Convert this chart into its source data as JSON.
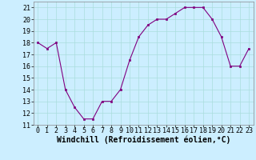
{
  "x": [
    0,
    1,
    2,
    3,
    4,
    5,
    6,
    7,
    8,
    9,
    10,
    11,
    12,
    13,
    14,
    15,
    16,
    17,
    18,
    19,
    20,
    21,
    22,
    23
  ],
  "y": [
    18,
    17.5,
    18,
    14,
    12.5,
    11.5,
    11.5,
    13,
    13,
    14,
    16.5,
    18.5,
    19.5,
    20,
    20,
    20.5,
    21,
    21,
    21,
    20,
    18.5,
    16,
    16,
    17.5
  ],
  "line_color": "#800080",
  "marker_color": "#800080",
  "bg_color": "#cceeff",
  "grid_color": "#aadddd",
  "xlabel": "Windchill (Refroidissement éolien,°C)",
  "xlim": [
    -0.5,
    23.5
  ],
  "ylim": [
    11,
    21.5
  ],
  "yticks": [
    11,
    12,
    13,
    14,
    15,
    16,
    17,
    18,
    19,
    20,
    21
  ],
  "xticks": [
    0,
    1,
    2,
    3,
    4,
    5,
    6,
    7,
    8,
    9,
    10,
    11,
    12,
    13,
    14,
    15,
    16,
    17,
    18,
    19,
    20,
    21,
    22,
    23
  ],
  "xlabel_fontsize": 7,
  "tick_fontsize": 6
}
